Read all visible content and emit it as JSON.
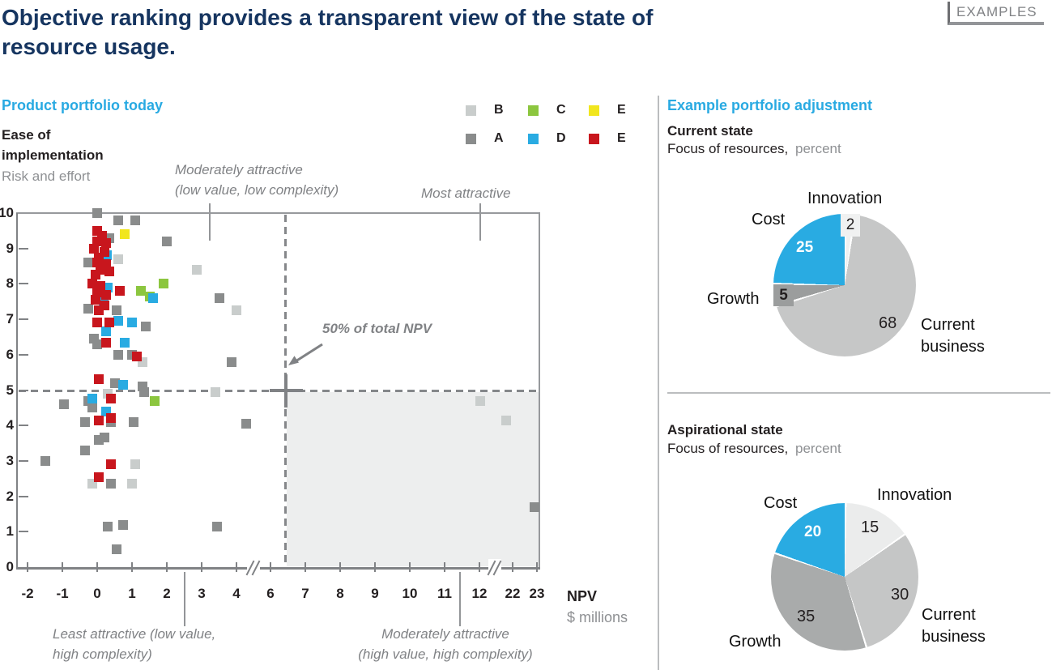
{
  "page": {
    "examples_tag": "EXAMPLES",
    "title": "Objective ranking provides a transparent view of the state of\nresource usage."
  },
  "left": {
    "header": "Product portfolio today",
    "y_title": "Ease of\nimplementation",
    "y_subtitle": "Risk and effort",
    "legend": [
      {
        "label": "B",
        "color": "#C9CDCC"
      },
      {
        "label": "C",
        "color": "#8CC63F"
      },
      {
        "label": "E",
        "color": "#F1E61E"
      },
      {
        "label": "A",
        "color": "#8A8C8C"
      },
      {
        "label": "D",
        "color": "#29ABE2"
      },
      {
        "label": "E",
        "color": "#C8161D"
      }
    ],
    "ann_top_left": "Moderately attractive\n(low value, low complexity)",
    "ann_top_right": "Most attractive",
    "ann_bottom_left": "Least attractive (low value,\nhigh complexity)",
    "ann_bottom_right": "Moderately attractive\n(high value, high complexity)",
    "npv_note": "50% of total NPV",
    "x_label": "NPV",
    "x_sublabel": "$ millions"
  },
  "right": {
    "header": "Example portfolio adjustment",
    "current": {
      "title": "Current state",
      "subtitle_black": "Focus of resources,",
      "subtitle_gray": "percent",
      "labels": {
        "innovation": "Innovation",
        "cost": "Cost",
        "growth": "Growth",
        "current_business": "Current\nbusiness"
      }
    },
    "aspirational": {
      "title": "Aspirational state",
      "subtitle_black": "Focus of resources,",
      "subtitle_gray": "percent",
      "labels": {
        "innovation": "Innovation",
        "cost": "Cost",
        "growth": "Growth",
        "current_business": "Current\nbusiness"
      }
    }
  },
  "chart_data": [
    {
      "type": "scatter",
      "title": "Product portfolio today",
      "xlabel": "NPV, $ millions",
      "ylabel": "Ease of implementation (Risk and effort)",
      "x_ticks": [
        -2,
        -1,
        0,
        1,
        2,
        3,
        4,
        6,
        7,
        8,
        9,
        10,
        11,
        12,
        22,
        23
      ],
      "x_axis_breaks": [
        [
          4,
          6
        ],
        [
          12,
          22
        ]
      ],
      "y_ticks": [
        0,
        1,
        2,
        3,
        4,
        5,
        6,
        7,
        8,
        9,
        10
      ],
      "ylim": [
        0,
        10
      ],
      "grid": false,
      "reference_lines": {
        "horizontal_y": 5,
        "vertical_x": 6.5,
        "annotation": "50% of total NPV"
      },
      "quadrant_labels": [
        "Moderately attractive (low value, low complexity)",
        "Most attractive",
        "Least attractive (low value, high complexity)",
        "Moderately attractive (high value, high complexity)"
      ],
      "series": [
        {
          "name": "A",
          "color": "#8A8C8C",
          "points": [
            [
              0,
              10.0
            ],
            [
              0.6,
              9.8
            ],
            [
              1.1,
              9.8
            ],
            [
              0.35,
              9.3
            ],
            [
              2.0,
              9.2
            ],
            [
              -0.25,
              8.6
            ],
            [
              3.5,
              7.6
            ],
            [
              -0.25,
              7.3
            ],
            [
              0.55,
              7.25
            ],
            [
              1.4,
              6.8
            ],
            [
              -0.1,
              6.45
            ],
            [
              0,
              6.3
            ],
            [
              0.6,
              6.0
            ],
            [
              1.0,
              6.0
            ],
            [
              3.85,
              5.8
            ],
            [
              0.5,
              5.2
            ],
            [
              1.3,
              5.1
            ],
            [
              1.35,
              4.95
            ],
            [
              -0.95,
              4.6
            ],
            [
              -0.25,
              4.7
            ],
            [
              -0.15,
              4.5
            ],
            [
              -0.35,
              4.1
            ],
            [
              0.4,
              4.1
            ],
            [
              1.05,
              4.1
            ],
            [
              4.55,
              4.05
            ],
            [
              0.2,
              3.65
            ],
            [
              0.05,
              3.6
            ],
            [
              -0.35,
              3.3
            ],
            [
              -1.5,
              3.0
            ],
            [
              0.4,
              2.35
            ],
            [
              0.3,
              1.15
            ],
            [
              0.75,
              1.2
            ],
            [
              3.45,
              1.15
            ],
            [
              0.55,
              0.5
            ],
            [
              22.9,
              1.7
            ]
          ]
        },
        {
          "name": "B",
          "color": "#C9CDCC",
          "points": [
            [
              0.6,
              8.7
            ],
            [
              2.85,
              8.4
            ],
            [
              4.0,
              7.25
            ],
            [
              1.3,
              5.8
            ],
            [
              3.4,
              4.95
            ],
            [
              0.3,
              4.9
            ],
            [
              1.1,
              2.9
            ],
            [
              -0.15,
              2.35
            ],
            [
              1.0,
              2.35
            ],
            [
              12.3,
              4.7
            ],
            [
              20,
              4.15
            ]
          ]
        },
        {
          "name": "C",
          "color": "#8CC63F",
          "points": [
            [
              1.9,
              8.0
            ],
            [
              1.25,
              7.8
            ],
            [
              1.5,
              7.65
            ],
            [
              1.65,
              4.7
            ]
          ]
        },
        {
          "name": "D",
          "color": "#29ABE2",
          "points": [
            [
              0.28,
              8.8
            ],
            [
              0.18,
              7.5
            ],
            [
              0.3,
              7.9
            ],
            [
              1.6,
              7.6
            ],
            [
              0.6,
              6.95
            ],
            [
              1.0,
              6.9
            ],
            [
              0.25,
              6.65
            ],
            [
              0.8,
              6.35
            ],
            [
              0.75,
              5.15
            ],
            [
              -0.15,
              4.75
            ],
            [
              0.25,
              4.4
            ]
          ]
        },
        {
          "name": "E",
          "color": "#C8161D",
          "points": [
            [
              0,
              9.5
            ],
            [
              0.15,
              9.35
            ],
            [
              0,
              9.2
            ],
            [
              0.25,
              9.15
            ],
            [
              -0.1,
              9.0
            ],
            [
              0.2,
              8.9
            ],
            [
              0.05,
              8.75
            ],
            [
              0,
              8.6
            ],
            [
              0.25,
              8.55
            ],
            [
              0.1,
              8.4
            ],
            [
              0.35,
              8.35
            ],
            [
              -0.05,
              8.25
            ],
            [
              -0.15,
              8.0
            ],
            [
              0.1,
              7.95
            ],
            [
              0.65,
              7.8
            ],
            [
              0,
              7.75
            ],
            [
              0.25,
              7.7
            ],
            [
              -0.05,
              7.55
            ],
            [
              0.2,
              7.4
            ],
            [
              0.05,
              7.25
            ],
            [
              0,
              6.9
            ],
            [
              0.35,
              6.9
            ],
            [
              0.25,
              6.35
            ],
            [
              1.15,
              5.95
            ],
            [
              0.05,
              5.3
            ],
            [
              0.4,
              4.75
            ],
            [
              0.05,
              4.15
            ],
            [
              0.4,
              4.2
            ],
            [
              0.4,
              2.9
            ],
            [
              0.05,
              2.55
            ]
          ]
        },
        {
          "name": "E",
          "color": "#F1E61E",
          "points": [
            [
              0.8,
              9.4
            ]
          ]
        }
      ]
    },
    {
      "type": "pie",
      "title": "Current state",
      "units": "percent",
      "slices": [
        {
          "label": "Innovation",
          "value": 2,
          "color": "#EFF0F0"
        },
        {
          "label": "Current business",
          "value": 68,
          "color": "#C6C7C7"
        },
        {
          "label": "Growth",
          "value": 5,
          "color": "#9B9D9D"
        },
        {
          "label": "Cost",
          "value": 25,
          "color": "#29ABE2"
        }
      ]
    },
    {
      "type": "pie",
      "title": "Aspirational state",
      "units": "percent",
      "slices": [
        {
          "label": "Innovation",
          "value": 15,
          "color": "#EBECEC"
        },
        {
          "label": "Current business",
          "value": 30,
          "color": "#C5C6C6"
        },
        {
          "label": "Growth",
          "value": 35,
          "color": "#A9ABAB"
        },
        {
          "label": "Cost",
          "value": 20,
          "color": "#29ABE2"
        }
      ]
    }
  ]
}
